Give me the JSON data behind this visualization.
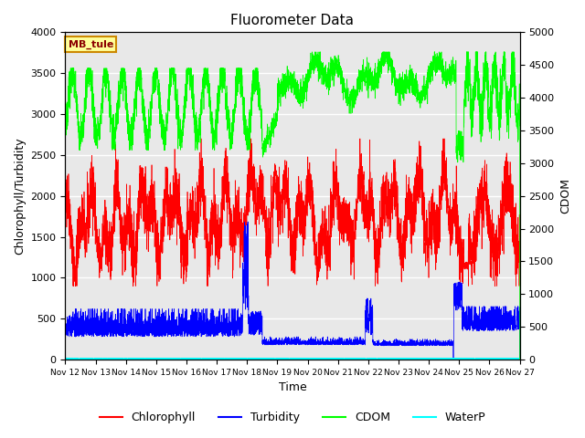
{
  "title": "Fluorometer Data",
  "xlabel": "Time",
  "ylabel_left": "Chlorophyll/Turbidity",
  "ylabel_right": "CDOM",
  "ylim_left": [
    0,
    4000
  ],
  "ylim_right": [
    0,
    5000
  ],
  "xlim_days": [
    12,
    27
  ],
  "xtick_labels": [
    "Nov 12",
    "Nov 13",
    "Nov 14",
    "Nov 15",
    "Nov 16",
    "Nov 17",
    "Nov 18",
    "Nov 19",
    "Nov 20",
    "Nov 21",
    "Nov 22",
    "Nov 23",
    "Nov 24",
    "Nov 25",
    "Nov 26",
    "Nov 27"
  ],
  "legend_labels": [
    "Chlorophyll",
    "Turbidity",
    "CDOM",
    "WaterP"
  ],
  "colors": {
    "Chlorophyll": "#ff0000",
    "Turbidity": "#0000ff",
    "CDOM": "#00ff00",
    "WaterP": "#00ffff"
  },
  "annotation_text": "MB_tule",
  "annotation_bbox": {
    "facecolor": "#ffff99",
    "edgecolor": "#cc8800"
  },
  "plot_bg_color": "#e8e8e8",
  "grid_color": "#ffffff",
  "seed": 42
}
